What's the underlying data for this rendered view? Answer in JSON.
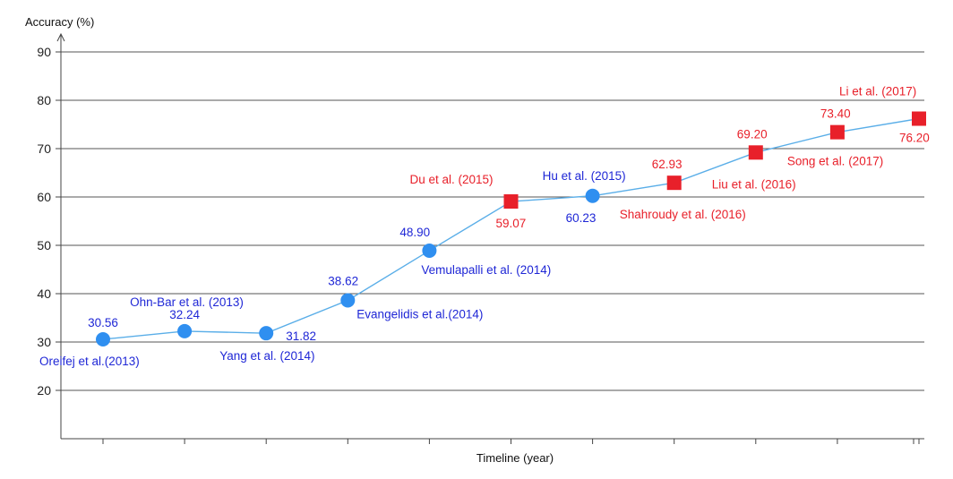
{
  "chart_data": {
    "type": "line",
    "ylabel": "Accuracy (%)",
    "xlabel": "Timeline (year)",
    "ylim": [
      10,
      90
    ],
    "yticks": [
      20,
      30,
      40,
      50,
      60,
      70,
      80,
      90
    ],
    "grid": true,
    "colors": {
      "line": "#5aaee8",
      "blue": "#2f8ff0",
      "red": "#e8202a",
      "blue_text": "#1f27d6",
      "red_text": "#e8202a"
    },
    "points": [
      {
        "x": 1,
        "y": 30.56,
        "value_label": "30.56",
        "name": "Oreifej et al.(2013)",
        "marker": "circle",
        "group": "blue"
      },
      {
        "x": 2,
        "y": 32.24,
        "value_label": "32.24",
        "name": "Ohn-Bar et al. (2013)",
        "marker": "circle",
        "group": "blue"
      },
      {
        "x": 3,
        "y": 31.82,
        "value_label": "31.82",
        "name": "Yang et al. (2014)",
        "marker": "circle",
        "group": "blue"
      },
      {
        "x": 4,
        "y": 38.62,
        "value_label": "38.62",
        "name": "Evangelidis et al.(2014)",
        "marker": "circle",
        "group": "blue"
      },
      {
        "x": 5,
        "y": 48.9,
        "value_label": "48.90",
        "name": "Vemulapalli et al. (2014)",
        "marker": "circle",
        "group": "blue"
      },
      {
        "x": 6,
        "y": 59.07,
        "value_label": "59.07",
        "name": "Du et al.  (2015)",
        "marker": "square",
        "group": "red"
      },
      {
        "x": 7,
        "y": 60.23,
        "value_label": "60.23",
        "name": "Hu et al. (2015)",
        "marker": "circle",
        "group": "blue"
      },
      {
        "x": 8,
        "y": 62.93,
        "value_label": "62.93",
        "name": "Shahroudy et al.  (2016)",
        "marker": "square",
        "group": "red"
      },
      {
        "x": 9,
        "y": 69.2,
        "value_label": "69.20",
        "name": "Liu et al.  (2016)",
        "marker": "square",
        "group": "red"
      },
      {
        "x": 10,
        "y": 73.4,
        "value_label": "73.40",
        "name": "Song et al. (2017)",
        "marker": "square",
        "group": "red"
      },
      {
        "x": 11,
        "y": 76.2,
        "value_label": "76.20",
        "name": "Li et al. (2017)",
        "marker": "square",
        "group": "red"
      }
    ]
  }
}
